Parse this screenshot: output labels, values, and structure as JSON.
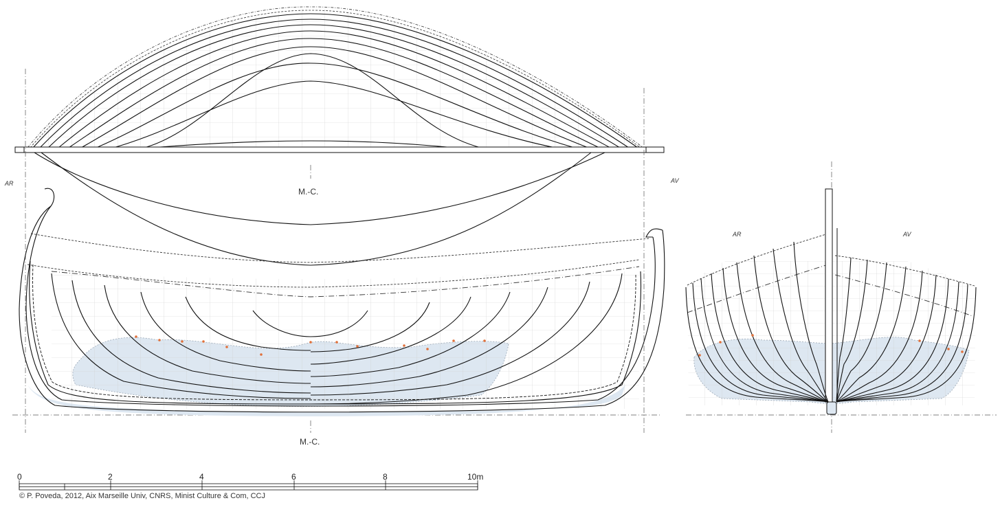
{
  "labels": {
    "midship_top": "M.-C.",
    "midship_bottom": "M.-C.",
    "aft_mark_left": "AR",
    "fore_mark_left": "AV",
    "aft_mark_section": "AR",
    "fore_mark_section": "AV"
  },
  "scale_bar": {
    "ticks": [
      "0",
      "2",
      "4",
      "6",
      "8",
      "10m"
    ]
  },
  "credit": "© P. Poveda, 2012, Aix Marseille Univ, CNRS, Minist Culture & Com, CCJ",
  "colors": {
    "line": "#111111",
    "grid": "#c8c8c8",
    "surviving_hull_fill": "#dde7f1",
    "fastener_marks": "#e0703a"
  }
}
